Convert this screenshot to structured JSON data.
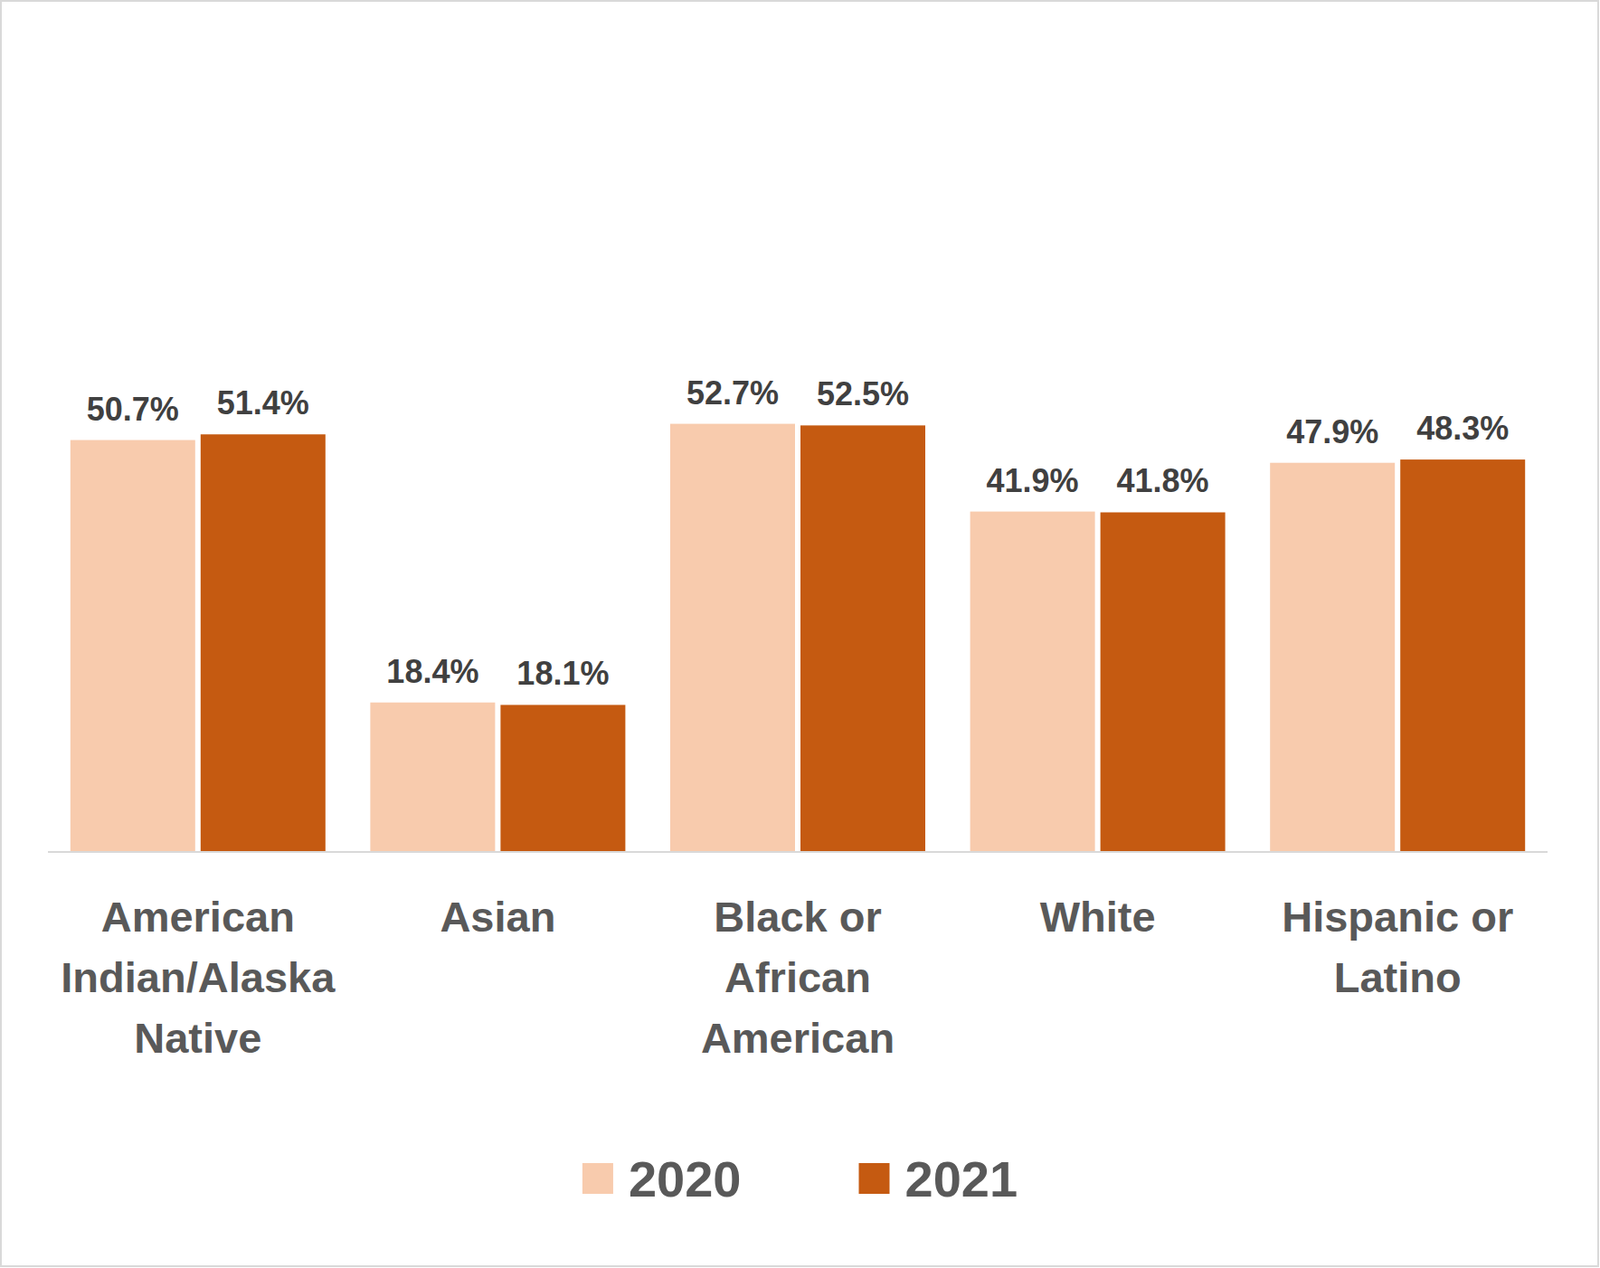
{
  "chart_data": {
    "type": "bar",
    "categories": [
      "American Indian/Alaska Native",
      "Asian",
      "Black or African American",
      "White",
      "Hispanic or Latino"
    ],
    "series": [
      {
        "name": "2020",
        "color": "#f8cbad",
        "values": [
          50.7,
          18.4,
          52.7,
          41.9,
          47.9
        ],
        "value_labels": [
          "50.7%",
          "18.4%",
          "52.7%",
          "41.9%",
          "47.9%"
        ]
      },
      {
        "name": "2021",
        "color": "#c55a11",
        "values": [
          51.4,
          18.1,
          52.5,
          41.8,
          48.3
        ],
        "value_labels": [
          "51.4%",
          "18.1%",
          "52.5%",
          "41.8%",
          "48.3%"
        ]
      }
    ],
    "ylim": [
      0,
      60
    ],
    "yticks": [
      0,
      60
    ],
    "grid": false,
    "legend": "bottom",
    "data_labels": true,
    "tick_labels": "x"
  }
}
